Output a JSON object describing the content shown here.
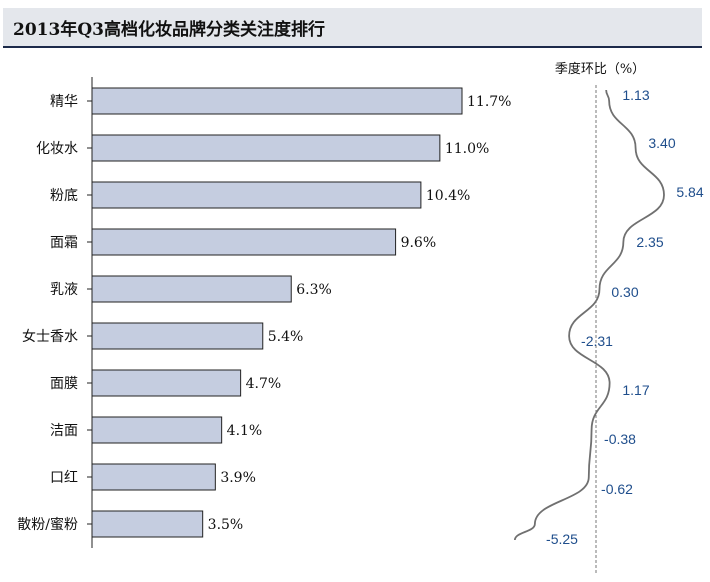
{
  "title": "2013年Q3高档化妆品牌分类关注度排行",
  "chart_data": [
    {
      "type": "bar",
      "orientation": "horizontal",
      "categories": [
        "精华",
        "化妆水",
        "粉底",
        "面霜",
        "乳液",
        "女士香水",
        "面膜",
        "洁面",
        "口红",
        "散粉/蜜粉"
      ],
      "values": [
        11.7,
        11.0,
        10.4,
        9.6,
        6.3,
        5.4,
        4.7,
        4.1,
        3.9,
        3.5
      ],
      "value_labels": [
        "11.7%",
        "11.0%",
        "10.4%",
        "9.6%",
        "6.3%",
        "5.4%",
        "4.7%",
        "4.1%",
        "3.9%",
        "3.5%"
      ],
      "bar_color": "#c5cde0",
      "bar_stroke": "#222222"
    },
    {
      "type": "line",
      "title": "季度环比（%）",
      "categories": [
        "精华",
        "化妆水",
        "粉底",
        "面霜",
        "乳液",
        "女士香水",
        "面膜",
        "洁面",
        "口红",
        "散粉/蜜粉"
      ],
      "values": [
        1.13,
        3.4,
        5.84,
        2.35,
        0.3,
        -2.31,
        1.17,
        -0.38,
        -0.62,
        -5.25
      ],
      "value_labels": [
        "1.13",
        "3.40",
        "5.84",
        "2.35",
        "0.30",
        "-2.31",
        "1.17",
        "-0.38",
        "-0.62",
        "-5.25"
      ],
      "reference_line": 0,
      "line_color": "#707070",
      "label_color": "#1f4e8c"
    }
  ]
}
